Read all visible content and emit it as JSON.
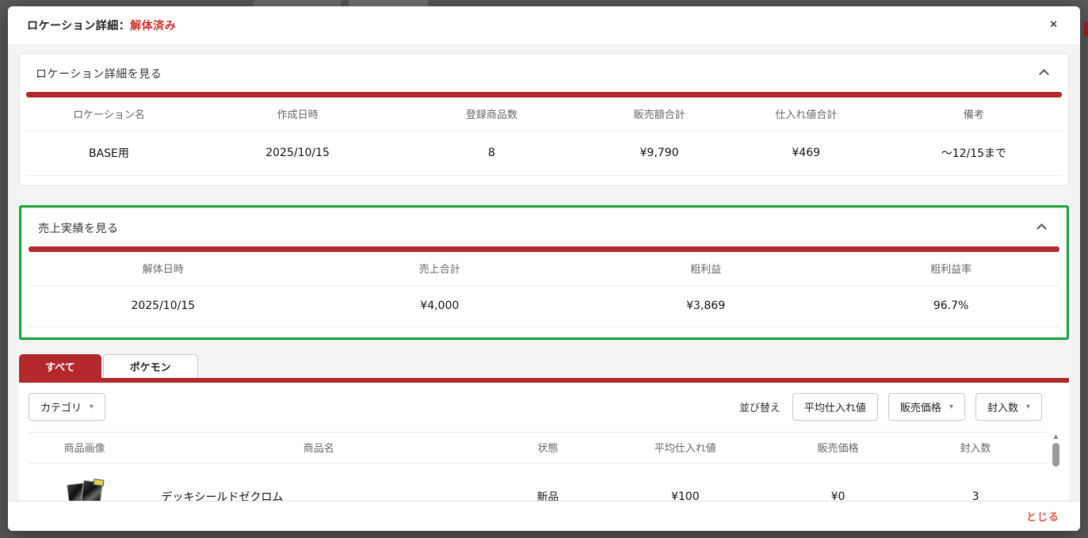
{
  "modal": {
    "title_prefix": "ロケーション詳細：",
    "title_status": "解体済み",
    "footer_close_label": "とじる"
  },
  "icons": {
    "close": "✕",
    "dropdown": "▾",
    "scroll_up": "▲",
    "scroll_down": "▼"
  },
  "location_section": {
    "title": "ロケーション詳細を見る",
    "columns": [
      "ロケーション名",
      "作成日時",
      "登録商品数",
      "販売額合計",
      "仕入れ値合計",
      "備考"
    ],
    "values": [
      "BASE用",
      "2025/10/15",
      "8",
      "¥9,790",
      "¥469",
      "～12/15まで"
    ]
  },
  "sales_section": {
    "title": "売上実績を見る",
    "highlighted": true,
    "columns": [
      "解体日時",
      "売上合計",
      "粗利益",
      "粗利益率"
    ],
    "values": [
      "2025/10/15",
      "¥4,000",
      "¥3,869",
      "96.7%"
    ]
  },
  "tabs": {
    "all_label": "すべて",
    "pokemon_label": "ポケモン",
    "active": "すべて"
  },
  "toolbar": {
    "category_label": "カテゴリ",
    "sort_label": "並び替え",
    "sort_avg_purchase_label": "平均仕入れ値",
    "sort_price_label": "販売価格",
    "sort_quantity_label": "封入数"
  },
  "product_table": {
    "columns": [
      "商品画像",
      "商品名",
      "状態",
      "平均仕入れ値",
      "販売価格",
      "封入数"
    ],
    "rows": [
      {
        "image": "デッキシールドゼクロム",
        "name": "デッキシールドゼクロム",
        "condition": "新品",
        "avg_purchase_price": "¥100",
        "price": "¥0",
        "quantity": "3"
      }
    ]
  },
  "colors": {
    "accent_red": "#b3282d",
    "status_text_red": "#c9302c",
    "highlight_green": "#17a63c"
  }
}
